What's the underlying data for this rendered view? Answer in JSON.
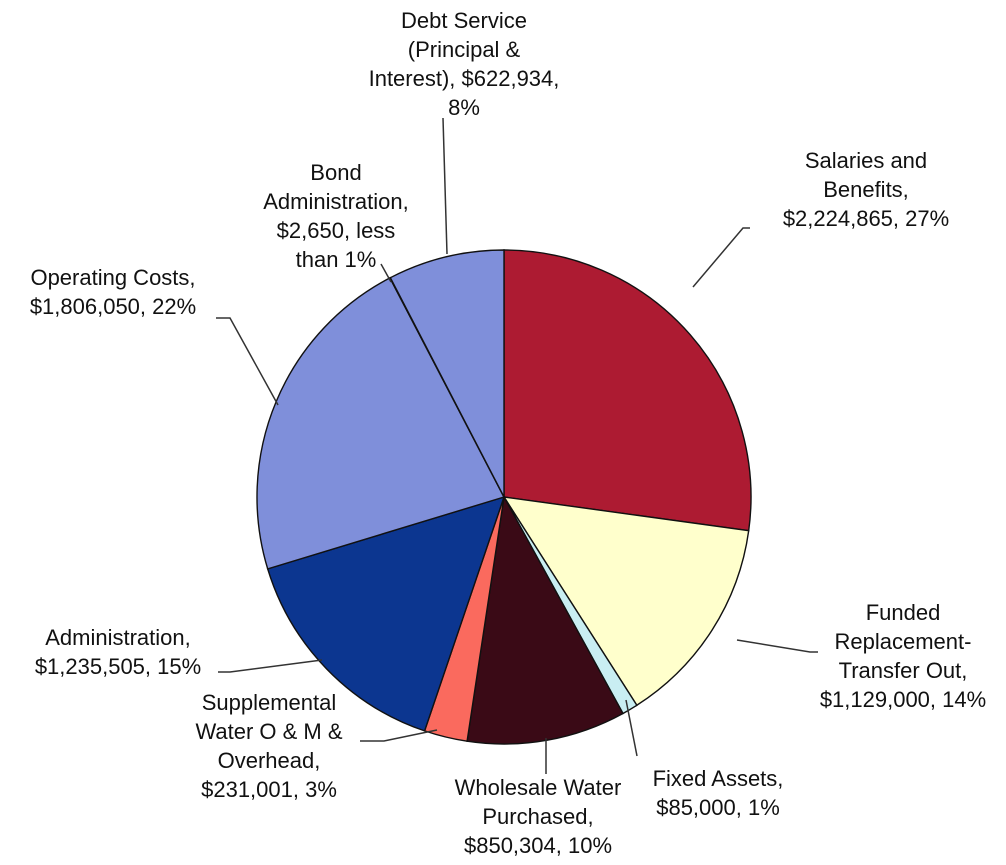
{
  "chart_data": {
    "type": "pie",
    "title": "",
    "slices": [
      {
        "name": "Salaries and Benefits",
        "value": 2224865,
        "percent_label": "27%",
        "color": "#ad1b32",
        "label_lines": [
          "Salaries and",
          "Benefits,",
          "$2,224,865, 27%"
        ]
      },
      {
        "name": "Funded Replacement-Transfer Out",
        "value": 1129000,
        "percent_label": "14%",
        "color": "#ffffcc",
        "label_lines": [
          "Funded",
          "Replacement-",
          "Transfer Out,",
          "$1,129,000, 14%"
        ]
      },
      {
        "name": "Fixed Assets",
        "value": 85000,
        "percent_label": "1%",
        "color": "#c9eef2",
        "label_lines": [
          "Fixed Assets,",
          "$85,000, 1%"
        ]
      },
      {
        "name": "Wholesale Water Purchased",
        "value": 850304,
        "percent_label": "10%",
        "color": "#3a0a16",
        "label_lines": [
          "Wholesale Water",
          "Purchased,",
          "$850,304, 10%"
        ]
      },
      {
        "name": "Supplemental Water O & M & Overhead",
        "value": 231001,
        "percent_label": "3%",
        "color": "#fa6a5e",
        "label_lines": [
          "Supplemental",
          "Water O & M &",
          "Overhead,",
          "$231,001, 3%"
        ]
      },
      {
        "name": "Administration",
        "value": 1235505,
        "percent_label": "15%",
        "color": "#0c3690",
        "label_lines": [
          "Administration,",
          "$1,235,505, 15%"
        ]
      },
      {
        "name": "Operating Costs",
        "value": 1806050,
        "percent_label": "22%",
        "color": "#7f8fda",
        "label_lines": [
          "Operating Costs,",
          "$1,806,050, 22%"
        ]
      },
      {
        "name": "Bond Administration",
        "value": 2650,
        "percent_label": "less than 1%",
        "color": "#7f8fda",
        "label_lines": [
          "Bond",
          "Administration,",
          "$2,650, less",
          "than 1%"
        ]
      },
      {
        "name": "Debt Service (Principal & Interest)",
        "value": 622934,
        "percent_label": "8%",
        "color": "#7f8fda",
        "label_lines": [
          "Debt Service",
          "(Principal &",
          "Interest), $622,934,",
          "8%"
        ]
      }
    ]
  }
}
